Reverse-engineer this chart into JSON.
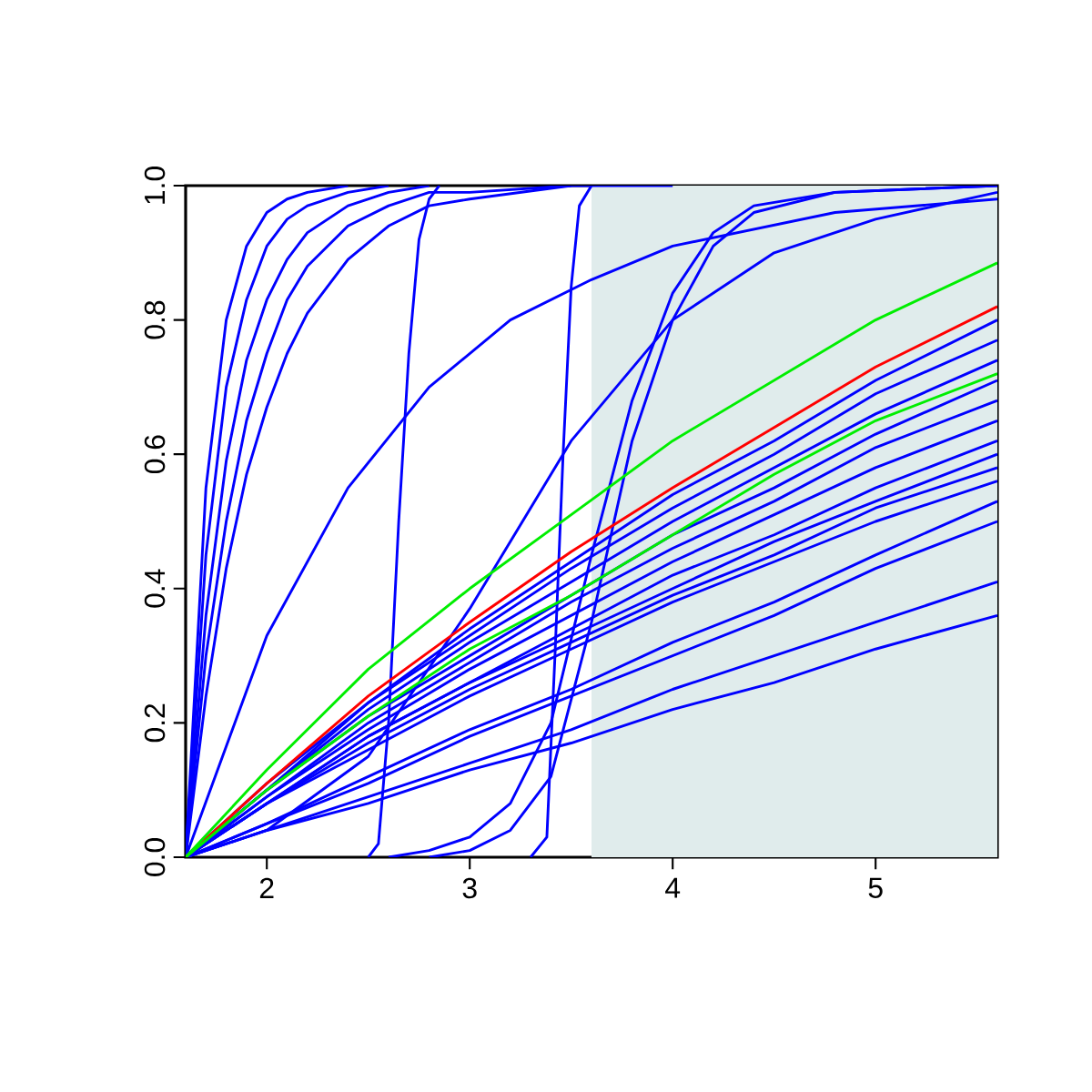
{
  "chart_data": {
    "type": "line",
    "xlim": [
      1.6,
      5.6
    ],
    "ylim": [
      0,
      1
    ],
    "xticks": [
      2,
      3,
      4,
      5
    ],
    "yticks": [
      {
        "value": 0,
        "label": "0.0"
      },
      {
        "value": 0.2,
        "label": "0.2"
      },
      {
        "value": 0.4,
        "label": "0.4"
      },
      {
        "value": 0.6,
        "label": "0.6"
      },
      {
        "value": 0.8,
        "label": "0.8"
      },
      {
        "value": 1,
        "label": "1.0"
      }
    ],
    "grid": false,
    "marker": "none",
    "line_style": "solid",
    "bands": [
      {
        "axis": "x",
        "from": 3.6,
        "to": 5.6,
        "color": "#e0ecec"
      }
    ],
    "series": [
      {
        "color": "#0000ff",
        "x": [
          1.6,
          1.7,
          1.8,
          1.9,
          2.0,
          2.1,
          2.2,
          2.4
        ],
        "values": [
          0,
          0.55,
          0.8,
          0.91,
          0.96,
          0.98,
          0.99,
          1
        ]
      },
      {
        "color": "#0000ff",
        "x": [
          1.6,
          1.7,
          1.8,
          1.9,
          2.0,
          2.1,
          2.2,
          2.4,
          2.6
        ],
        "values": [
          0,
          0.45,
          0.7,
          0.83,
          0.91,
          0.95,
          0.97,
          0.99,
          1
        ]
      },
      {
        "color": "#0000ff",
        "x": [
          1.6,
          1.7,
          1.8,
          1.9,
          2.0,
          2.1,
          2.2,
          2.4,
          2.6,
          2.8
        ],
        "values": [
          0,
          0.36,
          0.59,
          0.74,
          0.83,
          0.89,
          0.93,
          0.97,
          0.99,
          1
        ]
      },
      {
        "color": "#0000ff",
        "x": [
          1.6,
          1.7,
          1.8,
          1.9,
          2.0,
          2.1,
          2.2,
          2.4,
          2.6,
          2.8,
          3.0,
          3.5
        ],
        "values": [
          0,
          0.3,
          0.5,
          0.65,
          0.75,
          0.83,
          0.88,
          0.94,
          0.97,
          0.99,
          0.99,
          1
        ]
      },
      {
        "color": "#0000ff",
        "x": [
          1.6,
          1.7,
          1.8,
          1.9,
          2.0,
          2.1,
          2.2,
          2.4,
          2.6,
          2.8,
          3.0,
          3.5,
          4.0
        ],
        "values": [
          0,
          0.24,
          0.43,
          0.57,
          0.67,
          0.75,
          0.81,
          0.89,
          0.94,
          0.97,
          0.98,
          1,
          1
        ]
      },
      {
        "color": "#0000ff",
        "x": [
          1.6,
          2.0,
          2.4,
          2.8,
          3.2,
          3.6,
          4.0,
          4.8,
          5.6
        ],
        "values": [
          0,
          0.33,
          0.55,
          0.7,
          0.8,
          0.86,
          0.91,
          0.96,
          0.98
        ]
      },
      {
        "color": "#0000ff",
        "x": [
          1.6,
          2.0,
          2.5,
          3.0,
          3.5,
          4.0,
          4.5,
          5.0,
          5.6
        ],
        "values": [
          0,
          0.04,
          0.15,
          0.37,
          0.62,
          0.8,
          0.9,
          0.95,
          0.99
        ]
      },
      {
        "color": "#0000ff",
        "x": [
          2.5,
          2.55,
          2.6,
          2.65,
          2.7,
          2.75,
          2.8,
          2.85
        ],
        "values": [
          0,
          0.02,
          0.2,
          0.5,
          0.75,
          0.92,
          0.98,
          1
        ]
      },
      {
        "color": "#0000ff",
        "x": [
          3.3,
          3.38,
          3.42,
          3.46,
          3.5,
          3.54,
          3.6
        ],
        "values": [
          0,
          0.03,
          0.3,
          0.6,
          0.85,
          0.97,
          1
        ]
      },
      {
        "color": "#0000ff",
        "x": [
          2.6,
          2.8,
          3.0,
          3.2,
          3.4,
          3.6,
          3.8,
          4.0,
          4.2,
          4.4,
          4.8,
          5.6
        ],
        "values": [
          0,
          0.01,
          0.03,
          0.08,
          0.2,
          0.45,
          0.68,
          0.84,
          0.93,
          0.97,
          0.99,
          1
        ]
      },
      {
        "color": "#0000ff",
        "x": [
          2.8,
          3.0,
          3.2,
          3.4,
          3.6,
          3.8,
          4.0,
          4.2,
          4.4,
          4.8,
          5.6
        ],
        "values": [
          0,
          0.01,
          0.04,
          0.12,
          0.35,
          0.62,
          0.8,
          0.91,
          0.96,
          0.99,
          1
        ]
      },
      {
        "color": "#0000ff",
        "x": [
          1.6,
          2.0,
          2.5,
          3.0,
          3.5,
          4.0,
          4.5,
          5.0,
          5.6
        ],
        "values": [
          0,
          0.11,
          0.23,
          0.34,
          0.44,
          0.54,
          0.62,
          0.71,
          0.8
        ]
      },
      {
        "color": "#0000ff",
        "x": [
          1.6,
          2.0,
          2.5,
          3.0,
          3.5,
          4.0,
          4.5,
          5.0,
          5.6
        ],
        "values": [
          0,
          0.1,
          0.23,
          0.33,
          0.43,
          0.52,
          0.6,
          0.69,
          0.77
        ]
      },
      {
        "color": "#0000ff",
        "x": [
          1.6,
          2.0,
          2.5,
          3.0,
          3.5,
          4.0,
          4.5,
          5.0,
          5.6
        ],
        "values": [
          0,
          0.1,
          0.22,
          0.32,
          0.41,
          0.5,
          0.58,
          0.66,
          0.74
        ]
      },
      {
        "color": "#0000ff",
        "x": [
          1.6,
          2.0,
          2.5,
          3.0,
          3.5,
          4.0,
          4.5,
          5.0,
          5.6
        ],
        "values": [
          0,
          0.1,
          0.21,
          0.3,
          0.39,
          0.48,
          0.55,
          0.63,
          0.71
        ]
      },
      {
        "color": "#0000ff",
        "x": [
          1.6,
          2.0,
          2.5,
          3.0,
          3.5,
          4.0,
          4.5,
          5.0,
          5.6
        ],
        "values": [
          0,
          0.09,
          0.2,
          0.29,
          0.38,
          0.46,
          0.53,
          0.61,
          0.68
        ]
      },
      {
        "color": "#0000ff",
        "x": [
          1.6,
          2.0,
          2.5,
          3.0,
          3.5,
          4.0,
          4.5,
          5.0,
          5.6
        ],
        "values": [
          0,
          0.09,
          0.19,
          0.28,
          0.36,
          0.44,
          0.51,
          0.58,
          0.65
        ]
      },
      {
        "color": "#0000ff",
        "x": [
          1.6,
          2.0,
          2.5,
          3.0,
          3.5,
          4.0,
          4.5,
          5.0,
          5.6
        ],
        "values": [
          0,
          0.08,
          0.18,
          0.26,
          0.34,
          0.42,
          0.48,
          0.55,
          0.62
        ]
      },
      {
        "color": "#0000ff",
        "x": [
          1.6,
          2.0,
          2.5,
          3.0,
          3.5,
          4.0,
          4.5,
          5.0,
          5.6
        ],
        "values": [
          0,
          0.08,
          0.18,
          0.26,
          0.33,
          0.4,
          0.47,
          0.53,
          0.6
        ]
      },
      {
        "color": "#0000ff",
        "x": [
          1.6,
          2.0,
          2.5,
          3.0,
          3.5,
          4.0,
          4.5,
          5.0,
          5.6
        ],
        "values": [
          0,
          0.08,
          0.17,
          0.25,
          0.32,
          0.39,
          0.45,
          0.52,
          0.58
        ]
      },
      {
        "color": "#0000ff",
        "x": [
          1.6,
          2.0,
          2.5,
          3.0,
          3.5,
          4.0,
          4.5,
          5.0,
          5.6
        ],
        "values": [
          0,
          0.08,
          0.16,
          0.24,
          0.31,
          0.38,
          0.44,
          0.5,
          0.56
        ]
      },
      {
        "color": "#0000ff",
        "x": [
          1.6,
          2.0,
          2.5,
          3.0,
          3.5,
          4.0,
          4.5,
          5.0,
          5.6
        ],
        "values": [
          0,
          0.05,
          0.12,
          0.19,
          0.25,
          0.32,
          0.38,
          0.45,
          0.53
        ]
      },
      {
        "color": "#0000ff",
        "x": [
          1.6,
          2.0,
          2.5,
          3.0,
          3.5,
          4.0,
          4.5,
          5.0,
          5.6
        ],
        "values": [
          0,
          0.05,
          0.11,
          0.18,
          0.24,
          0.3,
          0.36,
          0.43,
          0.5
        ]
      },
      {
        "color": "#0000ff",
        "x": [
          1.6,
          2.0,
          2.5,
          3.0,
          3.5,
          4.0,
          4.5,
          5.0,
          5.6
        ],
        "values": [
          0,
          0.04,
          0.09,
          0.14,
          0.19,
          0.25,
          0.3,
          0.35,
          0.41
        ]
      },
      {
        "color": "#0000ff",
        "x": [
          1.6,
          2.0,
          2.5,
          3.0,
          3.5,
          4.0,
          4.5,
          5.0,
          5.6
        ],
        "values": [
          0,
          0.04,
          0.08,
          0.13,
          0.17,
          0.22,
          0.26,
          0.31,
          0.36
        ]
      },
      {
        "color": "#ff0000",
        "x": [
          1.6,
          2.0,
          2.5,
          3.0,
          3.5,
          4.0,
          4.5,
          5.0,
          5.6
        ],
        "values": [
          0,
          0.11,
          0.24,
          0.35,
          0.455,
          0.55,
          0.64,
          0.73,
          0.82
        ]
      },
      {
        "color": "#00ee00",
        "x": [
          1.6,
          2.0,
          2.5,
          3.0,
          3.5,
          4.0,
          4.5,
          5.0,
          5.6
        ],
        "values": [
          0,
          0.13,
          0.28,
          0.4,
          0.51,
          0.62,
          0.71,
          0.8,
          0.885
        ]
      },
      {
        "color": "#00ee00",
        "x": [
          1.6,
          2.0,
          2.5,
          3.0,
          3.5,
          4.0,
          4.5,
          5.0,
          5.6
        ],
        "values": [
          0,
          0.1,
          0.21,
          0.31,
          0.39,
          0.48,
          0.57,
          0.65,
          0.72
        ]
      }
    ]
  }
}
